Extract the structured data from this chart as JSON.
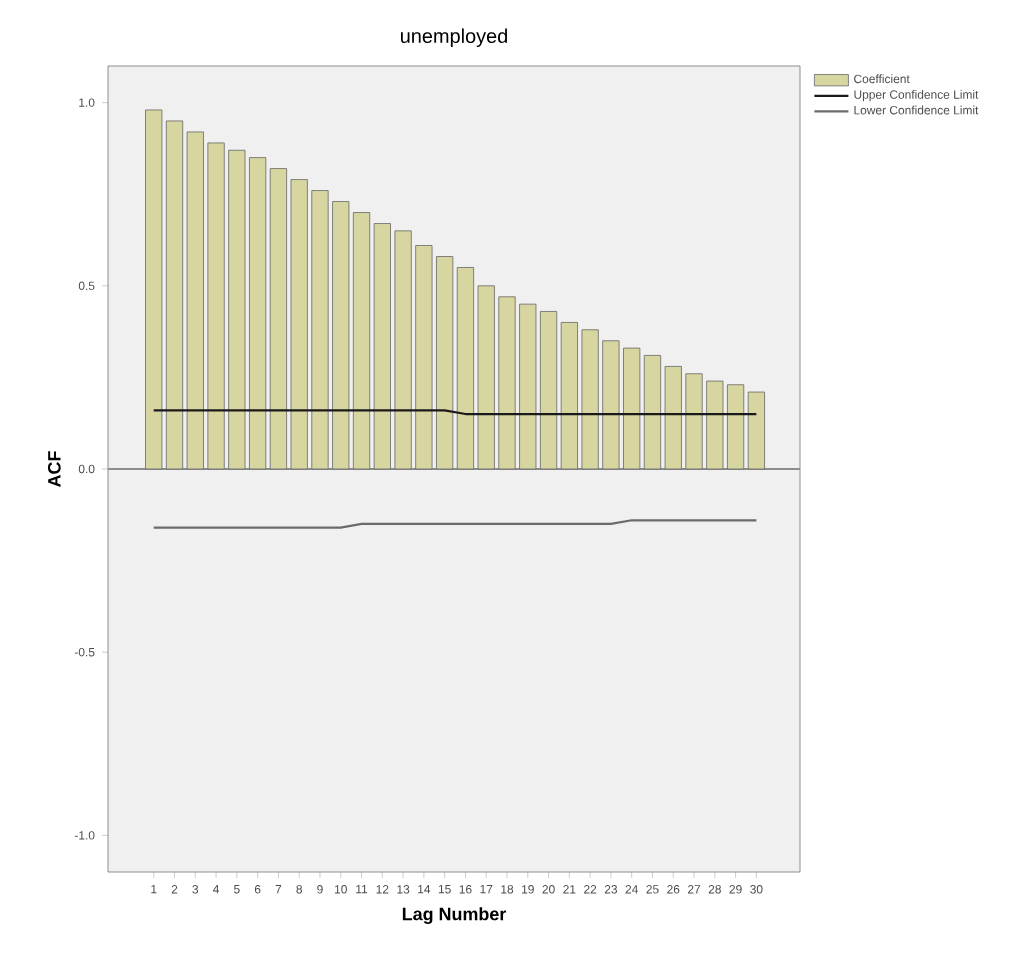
{
  "chart_data": {
    "type": "bar",
    "title": "unemployed",
    "xlabel": "Lag Number",
    "ylabel": "ACF",
    "categories": [
      "1",
      "2",
      "3",
      "4",
      "5",
      "6",
      "7",
      "8",
      "9",
      "10",
      "11",
      "12",
      "13",
      "14",
      "15",
      "16",
      "17",
      "18",
      "19",
      "20",
      "21",
      "22",
      "23",
      "24",
      "25",
      "26",
      "27",
      "28",
      "29",
      "30"
    ],
    "series": [
      {
        "name": "Coefficient",
        "color": "#d8d6a0",
        "values": [
          0.98,
          0.95,
          0.92,
          0.89,
          0.87,
          0.85,
          0.82,
          0.79,
          0.76,
          0.73,
          0.7,
          0.67,
          0.65,
          0.61,
          0.58,
          0.55,
          0.5,
          0.47,
          0.45,
          0.43,
          0.4,
          0.38,
          0.35,
          0.33,
          0.31,
          0.28,
          0.26,
          0.24,
          0.23,
          0.21
        ]
      },
      {
        "name": "Upper Confidence Limit",
        "type": "line",
        "color": "#1a1a1a",
        "values": [
          0.16,
          0.16,
          0.16,
          0.16,
          0.16,
          0.16,
          0.16,
          0.16,
          0.16,
          0.16,
          0.16,
          0.16,
          0.16,
          0.16,
          0.16,
          0.15,
          0.15,
          0.15,
          0.15,
          0.15,
          0.15,
          0.15,
          0.15,
          0.15,
          0.15,
          0.15,
          0.15,
          0.15,
          0.15,
          0.15
        ]
      },
      {
        "name": "Lower Confidence Limit",
        "type": "line",
        "color": "#6a6a6a",
        "values": [
          -0.16,
          -0.16,
          -0.16,
          -0.16,
          -0.16,
          -0.16,
          -0.16,
          -0.16,
          -0.16,
          -0.16,
          -0.15,
          -0.15,
          -0.15,
          -0.15,
          -0.15,
          -0.15,
          -0.15,
          -0.15,
          -0.15,
          -0.15,
          -0.15,
          -0.15,
          -0.15,
          -0.14,
          -0.14,
          -0.14,
          -0.14,
          -0.14,
          -0.14,
          -0.14
        ]
      }
    ],
    "ylim": [
      -1.1,
      1.1
    ],
    "yticks": [
      {
        "value": -1.0,
        "label": "-1.0"
      },
      {
        "value": -0.5,
        "label": "-0.5"
      },
      {
        "value": 0.0,
        "label": "0.0"
      },
      {
        "value": 0.5,
        "label": "0.5"
      },
      {
        "value": 1.0,
        "label": "1.0"
      }
    ],
    "ref_lines": [
      {
        "axis": "y",
        "value": 0,
        "color": "#8c8c8c"
      }
    ],
    "legend": "top right",
    "marker": "none",
    "line_style": "solid"
  }
}
